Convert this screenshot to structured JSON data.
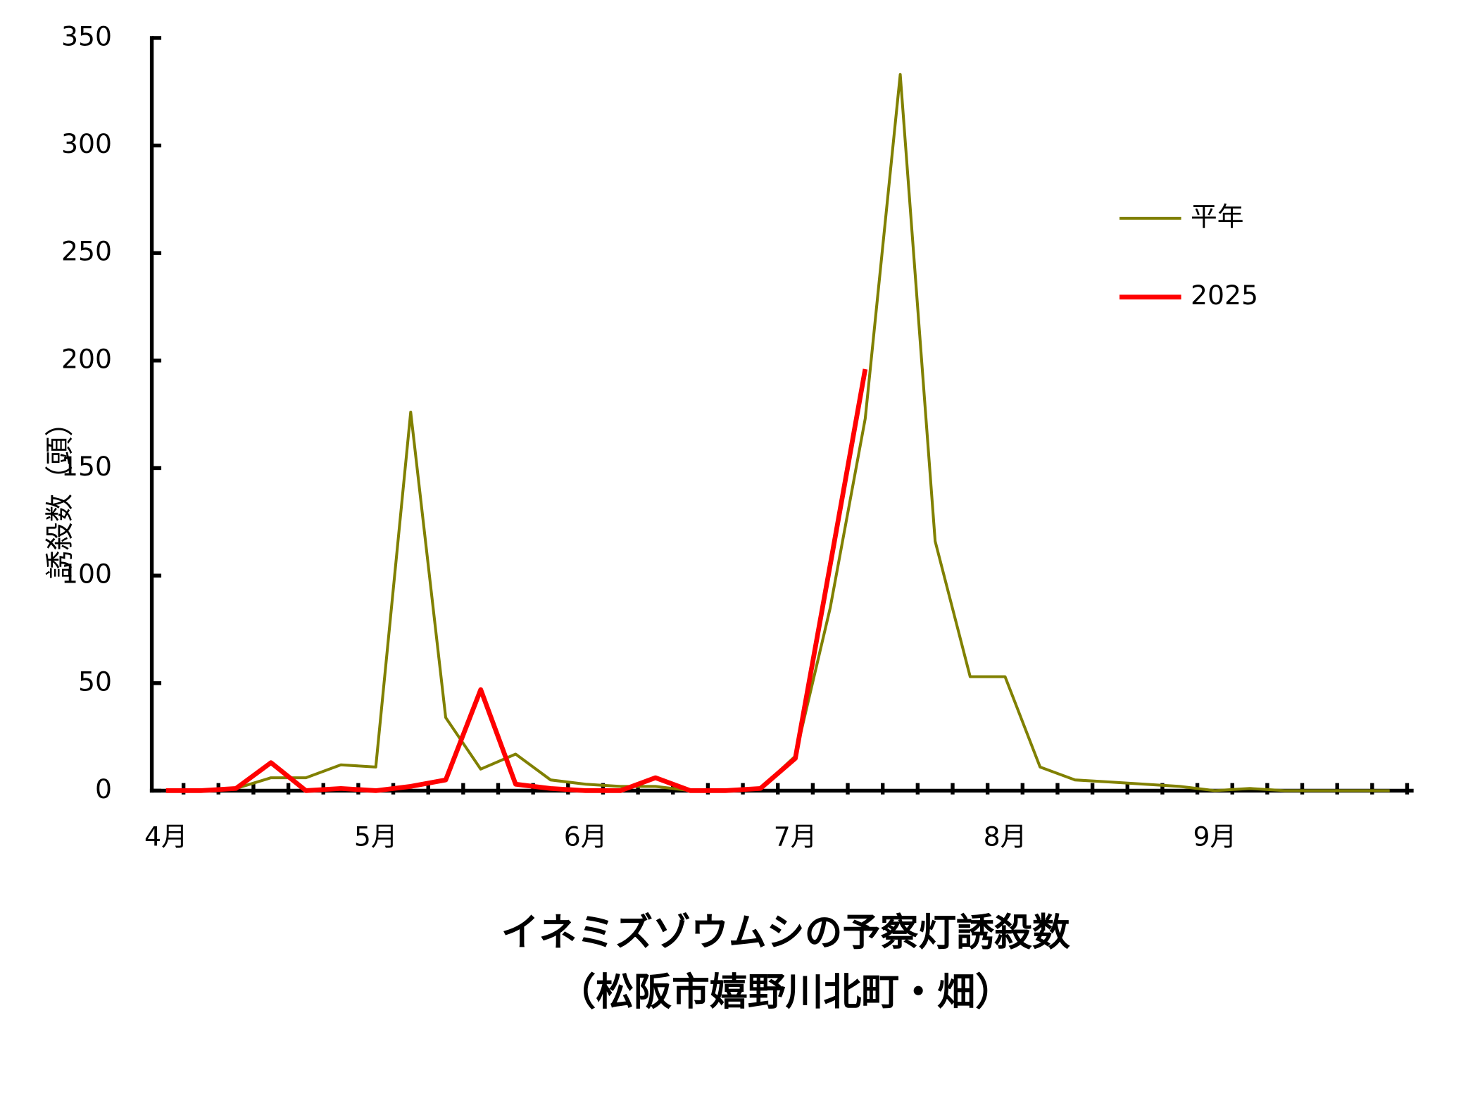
{
  "chart_data": {
    "type": "line",
    "title": "イネミズゾウムシの予察灯誘殺数",
    "subtitle": "（松阪市嬉野川北町・畑）",
    "y_label": "誘殺数（頭）",
    "categories": [
      "4月",
      null,
      null,
      null,
      null,
      null,
      "5月",
      null,
      null,
      null,
      null,
      null,
      "6月",
      null,
      null,
      null,
      null,
      null,
      "7月",
      null,
      null,
      null,
      null,
      null,
      "8月",
      null,
      null,
      null,
      null,
      null,
      "9月",
      null,
      null,
      null,
      null,
      null
    ],
    "series": [
      {
        "name": "平年",
        "color": "#808000",
        "values": [
          0,
          0,
          1,
          6,
          6,
          12,
          11,
          176,
          34,
          10,
          17,
          5,
          3,
          2,
          2,
          0,
          0,
          1,
          16,
          85,
          173,
          333,
          116,
          53,
          53,
          11,
          5,
          4,
          3,
          2,
          0,
          1,
          0,
          0,
          0,
          0
        ]
      },
      {
        "name": "2025",
        "color": "#ff0000",
        "values": [
          0,
          0,
          1,
          13,
          0,
          1,
          0,
          2,
          5,
          47,
          3,
          1,
          0,
          0,
          6,
          0,
          0,
          1,
          15,
          105,
          196,
          null,
          null,
          null,
          null,
          null,
          null,
          null,
          null,
          null,
          null,
          null,
          null,
          null,
          null,
          null
        ]
      }
    ],
    "ylim": [
      0,
      350
    ],
    "yticks": [
      0,
      50,
      100,
      150,
      200,
      250,
      300,
      350
    ],
    "grid": false,
    "legend": "upper right"
  }
}
